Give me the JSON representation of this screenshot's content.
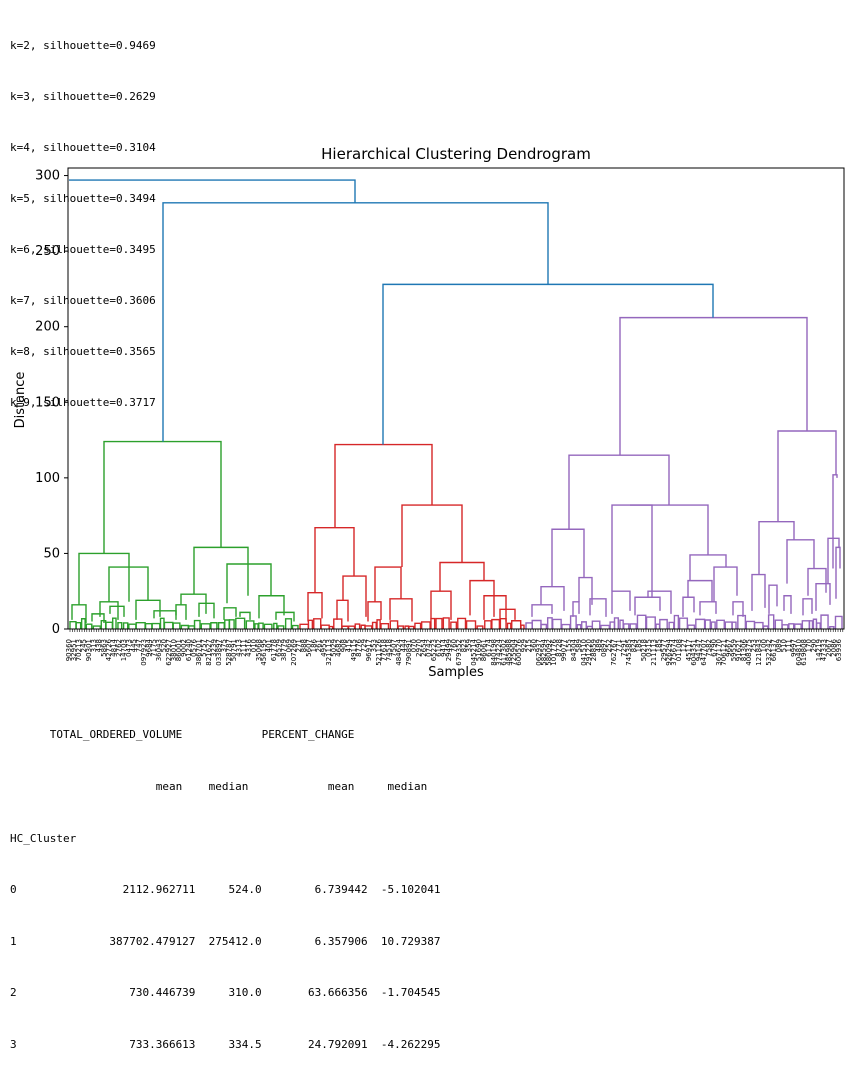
{
  "silhouette_lines": [
    "k=2, silhouette=0.9469",
    "k=3, silhouette=0.2629",
    "k=4, silhouette=0.3104",
    "k=5, silhouette=0.3494",
    "k=6, silhouette=0.3495",
    "k=7, silhouette=0.3606",
    "k=8, silhouette=0.3565",
    "k=9, silhouette=0.3717"
  ],
  "chart_data": {
    "type": "dendrogram",
    "title": "Hierarchical Clustering Dendrogram",
    "xlabel": "Samples",
    "ylabel": "Distance",
    "ylim": [
      0,
      305
    ],
    "yticks": [
      0,
      50,
      100,
      150,
      200,
      250,
      300
    ],
    "clusters": [
      {
        "name": "green",
        "color": "#2ca02c",
        "merge_height": 124
      },
      {
        "name": "red",
        "color": "#d62728",
        "merge_height": 122
      },
      {
        "name": "purple",
        "color": "#9467bd",
        "merge_height": 206
      }
    ],
    "link_color": "#1f77b4",
    "top_merges": [
      {
        "height": 297,
        "label": "root"
      },
      {
        "height": 282,
        "label": "green + (red + purple)"
      },
      {
        "height": 228,
        "label": "red + purple"
      }
    ],
    "sub_merges": {
      "green": [
        124,
        54,
        50,
        43,
        41,
        22
      ],
      "red": [
        122,
        82,
        67,
        44,
        35,
        32
      ],
      "purple": [
        206,
        131,
        115,
        82,
        71,
        66,
        49,
        40
      ]
    }
  },
  "table": {
    "header1": "      TOTAL_ORDERED_VOLUME            PERCENT_CHANGE           ",
    "header2": "                      mean    median            mean     median",
    "index_name": "HC_Cluster",
    "rows": [
      "0                2112.962711     524.0        6.739442  -5.102041",
      "1              387702.479127  275412.0        6.357906  10.729387",
      "2                 730.446739     310.0       63.666356  -1.704545",
      "3                 733.366613     334.5       24.792091  -4.262295"
    ]
  }
}
